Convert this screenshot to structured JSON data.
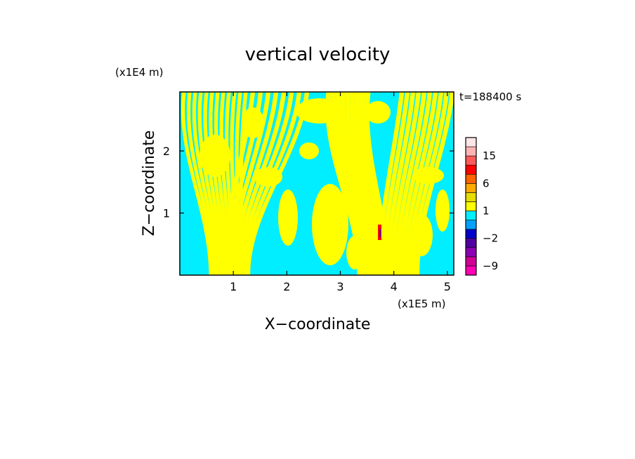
{
  "chart_data": {
    "type": "heatmap",
    "title": "vertical velocity",
    "time_label": "t=188400 s",
    "xlabel": "X−coordinate",
    "ylabel": "Z−coordinate",
    "x_unit": "(x1E5 m)",
    "y_unit": "(x1E4 m)",
    "xlim": [
      0,
      5.12
    ],
    "ylim": [
      0,
      2.95
    ],
    "x_ticks": [
      {
        "value": 1,
        "label": "1"
      },
      {
        "value": 2,
        "label": "2"
      },
      {
        "value": 3,
        "label": "3"
      },
      {
        "value": 4,
        "label": "4"
      },
      {
        "value": 5,
        "label": "5"
      }
    ],
    "y_ticks": [
      {
        "value": 1,
        "label": "1"
      },
      {
        "value": 2,
        "label": "2"
      }
    ],
    "colorbar": {
      "levels": [
        -12,
        -9,
        -6,
        -4,
        -2,
        -1,
        0,
        1,
        2,
        4,
        6,
        9,
        12,
        15,
        18,
        24
      ],
      "colors": [
        "#ff00b4",
        "#d00096",
        "#8c00b4",
        "#5000a0",
        "#0000c8",
        "#00a0ff",
        "#00eeff",
        "#ffff00",
        "#e6dc00",
        "#ffaa00",
        "#ff6400",
        "#ff0000",
        "#ff5a5a",
        "#ffb4b4",
        "#ffe6e6"
      ],
      "labels": [
        {
          "value": -9,
          "label": "−9"
        },
        {
          "value": -2,
          "label": "−2"
        },
        {
          "value": 1,
          "label": "1"
        },
        {
          "value": 6,
          "label": "6"
        },
        {
          "value": 15,
          "label": "15"
        }
      ]
    },
    "field_colors": {
      "positive": "#ffff00",
      "negative": "#00eeff",
      "strong_positive": "#ff0000",
      "strong_negative": "#5000a0"
    }
  }
}
